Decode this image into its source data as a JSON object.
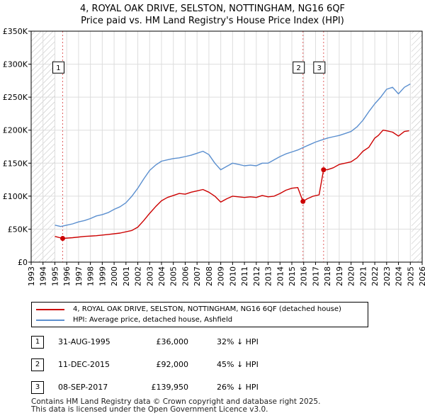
{
  "title_line1": "4, ROYAL OAK DRIVE, SELSTON, NOTTINGHAM, NG16 6QF",
  "title_line2": "Price paid vs. HM Land Registry's House Price Index (HPI)",
  "colors": {
    "property": "#cc0000",
    "hpi": "#5b8fcf",
    "vline": "#e06060",
    "hatch": "#bbbbbb"
  },
  "chart_data": {
    "type": "line",
    "xlim": [
      1993,
      2026
    ],
    "ylim": [
      0,
      350000
    ],
    "y_ticks": [
      0,
      50000,
      100000,
      150000,
      200000,
      250000,
      300000,
      350000
    ],
    "y_tick_labels": [
      "£0",
      "£50K",
      "£100K",
      "£150K",
      "£200K",
      "£250K",
      "£300K",
      "£350K"
    ],
    "x_ticks": [
      1993,
      1994,
      1995,
      1996,
      1997,
      1998,
      1999,
      2000,
      2001,
      2002,
      2003,
      2004,
      2005,
      2006,
      2007,
      2008,
      2009,
      2010,
      2011,
      2012,
      2013,
      2014,
      2015,
      2016,
      2017,
      2018,
      2019,
      2020,
      2021,
      2022,
      2023,
      2024,
      2025,
      2026
    ],
    "x_tick_labels": [
      "1993",
      "1994",
      "1995",
      "1996",
      "1997",
      "1998",
      "1999",
      "2000",
      "2001",
      "2002",
      "2003",
      "2004",
      "2005",
      "2006",
      "2007",
      "2008",
      "2009",
      "2010",
      "2011",
      "2012",
      "2013",
      "2014",
      "2015",
      "2016",
      "2017",
      "2018",
      "2019",
      "2020",
      "2021",
      "2022",
      "2023",
      "2024",
      "2025",
      "2026"
    ],
    "hatch_ranges": [
      [
        1993,
        1995.0
      ],
      [
        2025.1,
        2026
      ]
    ],
    "series": [
      {
        "name": "4, ROYAL OAK DRIVE, SELSTON, NOTTINGHAM, NG16 6QF (detached house)",
        "color": "#cc0000",
        "x": [
          1995.0,
          1995.66,
          1996.5,
          1997.5,
          1998.5,
          1999.5,
          2000.5,
          2001.5,
          2002.0,
          2002.5,
          2003.0,
          2003.5,
          2004.0,
          2004.5,
          2005.0,
          2005.5,
          2006.0,
          2006.5,
          2007.0,
          2007.5,
          2008.0,
          2008.5,
          2009.0,
          2009.5,
          2010.0,
          2010.5,
          2011.0,
          2011.5,
          2012.0,
          2012.5,
          2013.0,
          2013.5,
          2014.0,
          2014.5,
          2015.0,
          2015.5,
          2015.94,
          2016.3,
          2016.8,
          2017.3,
          2017.68,
          2018.0,
          2018.5,
          2019.0,
          2019.5,
          2020.0,
          2020.5,
          2021.0,
          2021.5,
          2022.0,
          2022.3,
          2022.7,
          2023.0,
          2023.5,
          2024.0,
          2024.5,
          2024.9
        ],
        "values": [
          39000,
          36000,
          37000,
          39000,
          40000,
          42000,
          44000,
          48000,
          53000,
          63000,
          74000,
          84000,
          93000,
          98000,
          101000,
          104000,
          103000,
          106000,
          108000,
          110000,
          106000,
          100000,
          91000,
          96000,
          100000,
          99000,
          98000,
          99000,
          98000,
          101000,
          99000,
          100000,
          104000,
          109000,
          112000,
          113000,
          92000,
          96000,
          100000,
          102000,
          139950,
          140000,
          143000,
          148000,
          150000,
          152000,
          158000,
          168000,
          174000,
          188000,
          192000,
          200000,
          199000,
          197000,
          191000,
          198000,
          199000
        ]
      },
      {
        "name": "HPI: Average price, detached house, Ashfield",
        "color": "#5b8fcf",
        "x": [
          1995.0,
          1995.5,
          1996.0,
          1996.5,
          1997.0,
          1997.5,
          1998.0,
          1998.5,
          1999.0,
          1999.5,
          2000.0,
          2000.5,
          2001.0,
          2001.5,
          2002.0,
          2002.5,
          2003.0,
          2003.5,
          2004.0,
          2004.5,
          2005.0,
          2005.5,
          2006.0,
          2006.5,
          2007.0,
          2007.5,
          2008.0,
          2008.5,
          2009.0,
          2009.5,
          2010.0,
          2010.5,
          2011.0,
          2011.5,
          2012.0,
          2012.5,
          2013.0,
          2013.5,
          2014.0,
          2014.5,
          2015.0,
          2015.5,
          2016.0,
          2016.5,
          2017.0,
          2017.5,
          2018.0,
          2018.5,
          2019.0,
          2019.5,
          2020.0,
          2020.5,
          2021.0,
          2021.5,
          2022.0,
          2022.5,
          2023.0,
          2023.5,
          2024.0,
          2024.5,
          2025.0
        ],
        "values": [
          56000,
          54000,
          56000,
          58000,
          61000,
          63000,
          66000,
          70000,
          72000,
          75000,
          80000,
          84000,
          90000,
          100000,
          112000,
          126000,
          139000,
          147000,
          153000,
          155000,
          157000,
          158000,
          160000,
          162000,
          165000,
          168000,
          163000,
          150000,
          140000,
          145000,
          150000,
          148000,
          146000,
          147000,
          146000,
          150000,
          150000,
          155000,
          160000,
          164000,
          167000,
          170000,
          174000,
          178000,
          182000,
          185000,
          188000,
          190000,
          192000,
          195000,
          198000,
          205000,
          215000,
          228000,
          240000,
          250000,
          262000,
          265000,
          255000,
          265000,
          270000
        ]
      }
    ],
    "vlines": [
      {
        "x": 1995.66,
        "label": "1"
      },
      {
        "x": 2015.94,
        "label": "2"
      },
      {
        "x": 2017.68,
        "label": "3"
      }
    ],
    "sale_points": [
      {
        "x": 1995.66,
        "y": 36000
      },
      {
        "x": 2015.94,
        "y": 92000
      },
      {
        "x": 2017.68,
        "y": 139950
      }
    ],
    "marker_label_value": 295000
  },
  "legend": {
    "property": "4, ROYAL OAK DRIVE, SELSTON, NOTTINGHAM, NG16 6QF (detached house)",
    "hpi": "HPI: Average price, detached house, Ashfield"
  },
  "sales": [
    {
      "num": "1",
      "date": "31-AUG-1995",
      "price": "£36,000",
      "hpi": "32% ↓ HPI"
    },
    {
      "num": "2",
      "date": "11-DEC-2015",
      "price": "£92,000",
      "hpi": "45% ↓ HPI"
    },
    {
      "num": "3",
      "date": "08-SEP-2017",
      "price": "£139,950",
      "hpi": "26% ↓ HPI"
    }
  ],
  "footer_line1": "Contains HM Land Registry data © Crown copyright and database right 2025.",
  "footer_line2": "This data is licensed under the Open Government Licence v3.0."
}
